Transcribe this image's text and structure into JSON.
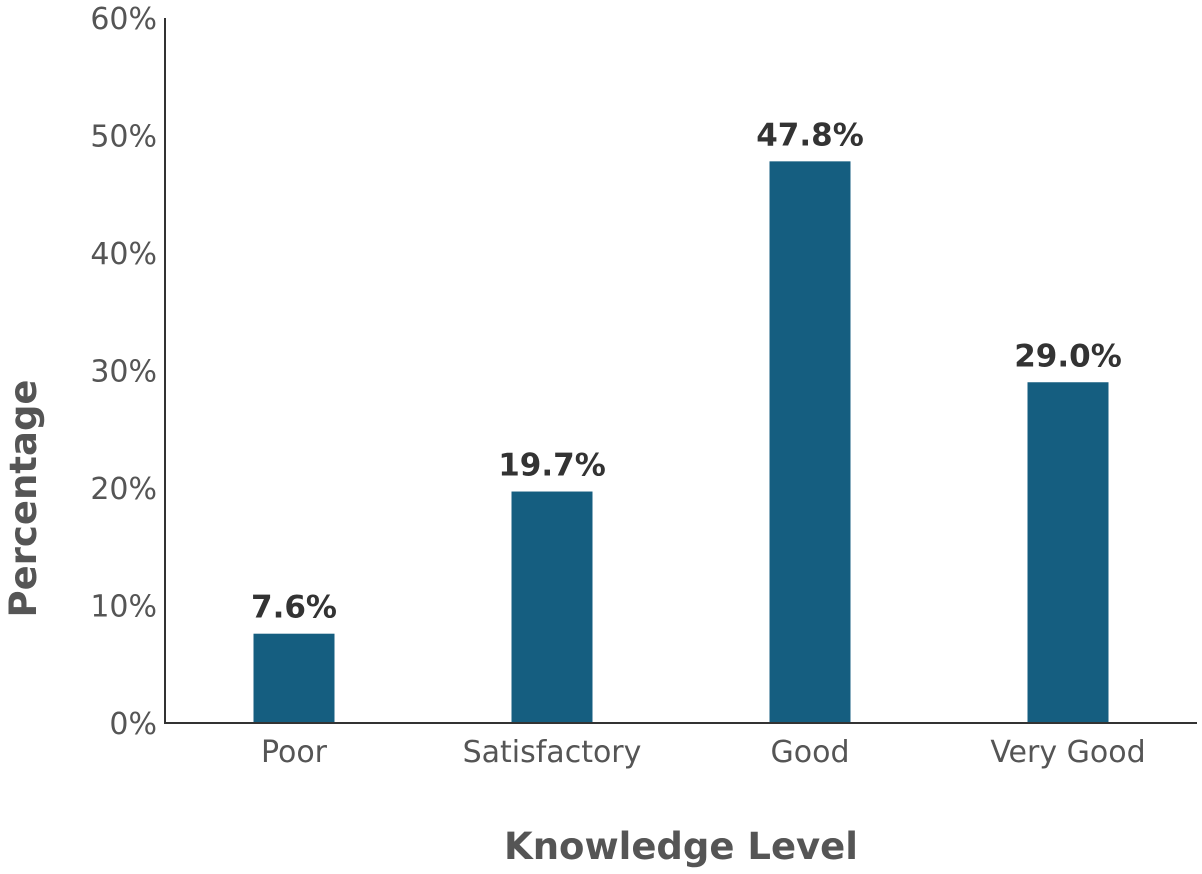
{
  "chart_data": {
    "type": "bar",
    "categories": [
      "Poor",
      "Satisfactory",
      "Good",
      "Very Good"
    ],
    "values": [
      7.6,
      19.7,
      47.8,
      29.0
    ],
    "data_labels": [
      "7.6%",
      "19.7%",
      "47.8%",
      "29.0%"
    ],
    "xlabel": "Knowledge Level",
    "ylabel": "Percentage",
    "ylim": [
      0,
      60
    ],
    "yticks": [
      0,
      10,
      20,
      30,
      40,
      50,
      60
    ],
    "ytick_labels": [
      "0%",
      "10%",
      "20%",
      "30%",
      "40%",
      "50%",
      "60%"
    ],
    "grid": false,
    "legend": "none",
    "colors": {
      "bar": "#155e80",
      "axis": "#333333",
      "tick_text": "#555555",
      "label_text": "#333333"
    }
  }
}
